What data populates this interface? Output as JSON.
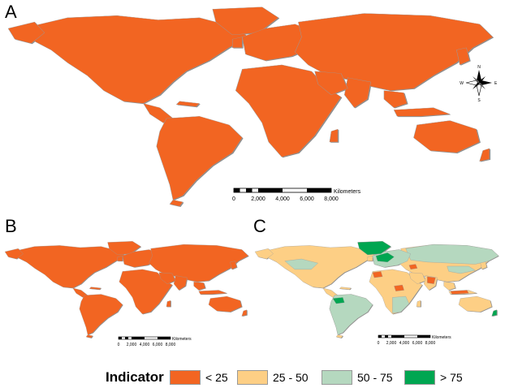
{
  "panels": [
    {
      "label": "A"
    },
    {
      "label": "B"
    },
    {
      "label": "C"
    }
  ],
  "scale_bar": {
    "unit": "Kilometers",
    "ticks": [
      "0",
      "2,000",
      "4,000",
      "6,000",
      "8,000"
    ]
  },
  "compass": {
    "north": "N",
    "south": "S",
    "east": "E",
    "west": "W"
  },
  "legend": {
    "title": "Indicator",
    "items": [
      {
        "label": "< 25",
        "color": "#F26522"
      },
      {
        "label": "25 - 50",
        "color": "#FDCF85"
      },
      {
        "label": "50 - 75",
        "color": "#B5D8BF"
      },
      {
        "label": "> 75",
        "color": "#00A651"
      }
    ]
  },
  "colors": {
    "land_low": "#F26522",
    "border": "#9a9a9a",
    "coast_shadow": "#8c8c8c"
  }
}
